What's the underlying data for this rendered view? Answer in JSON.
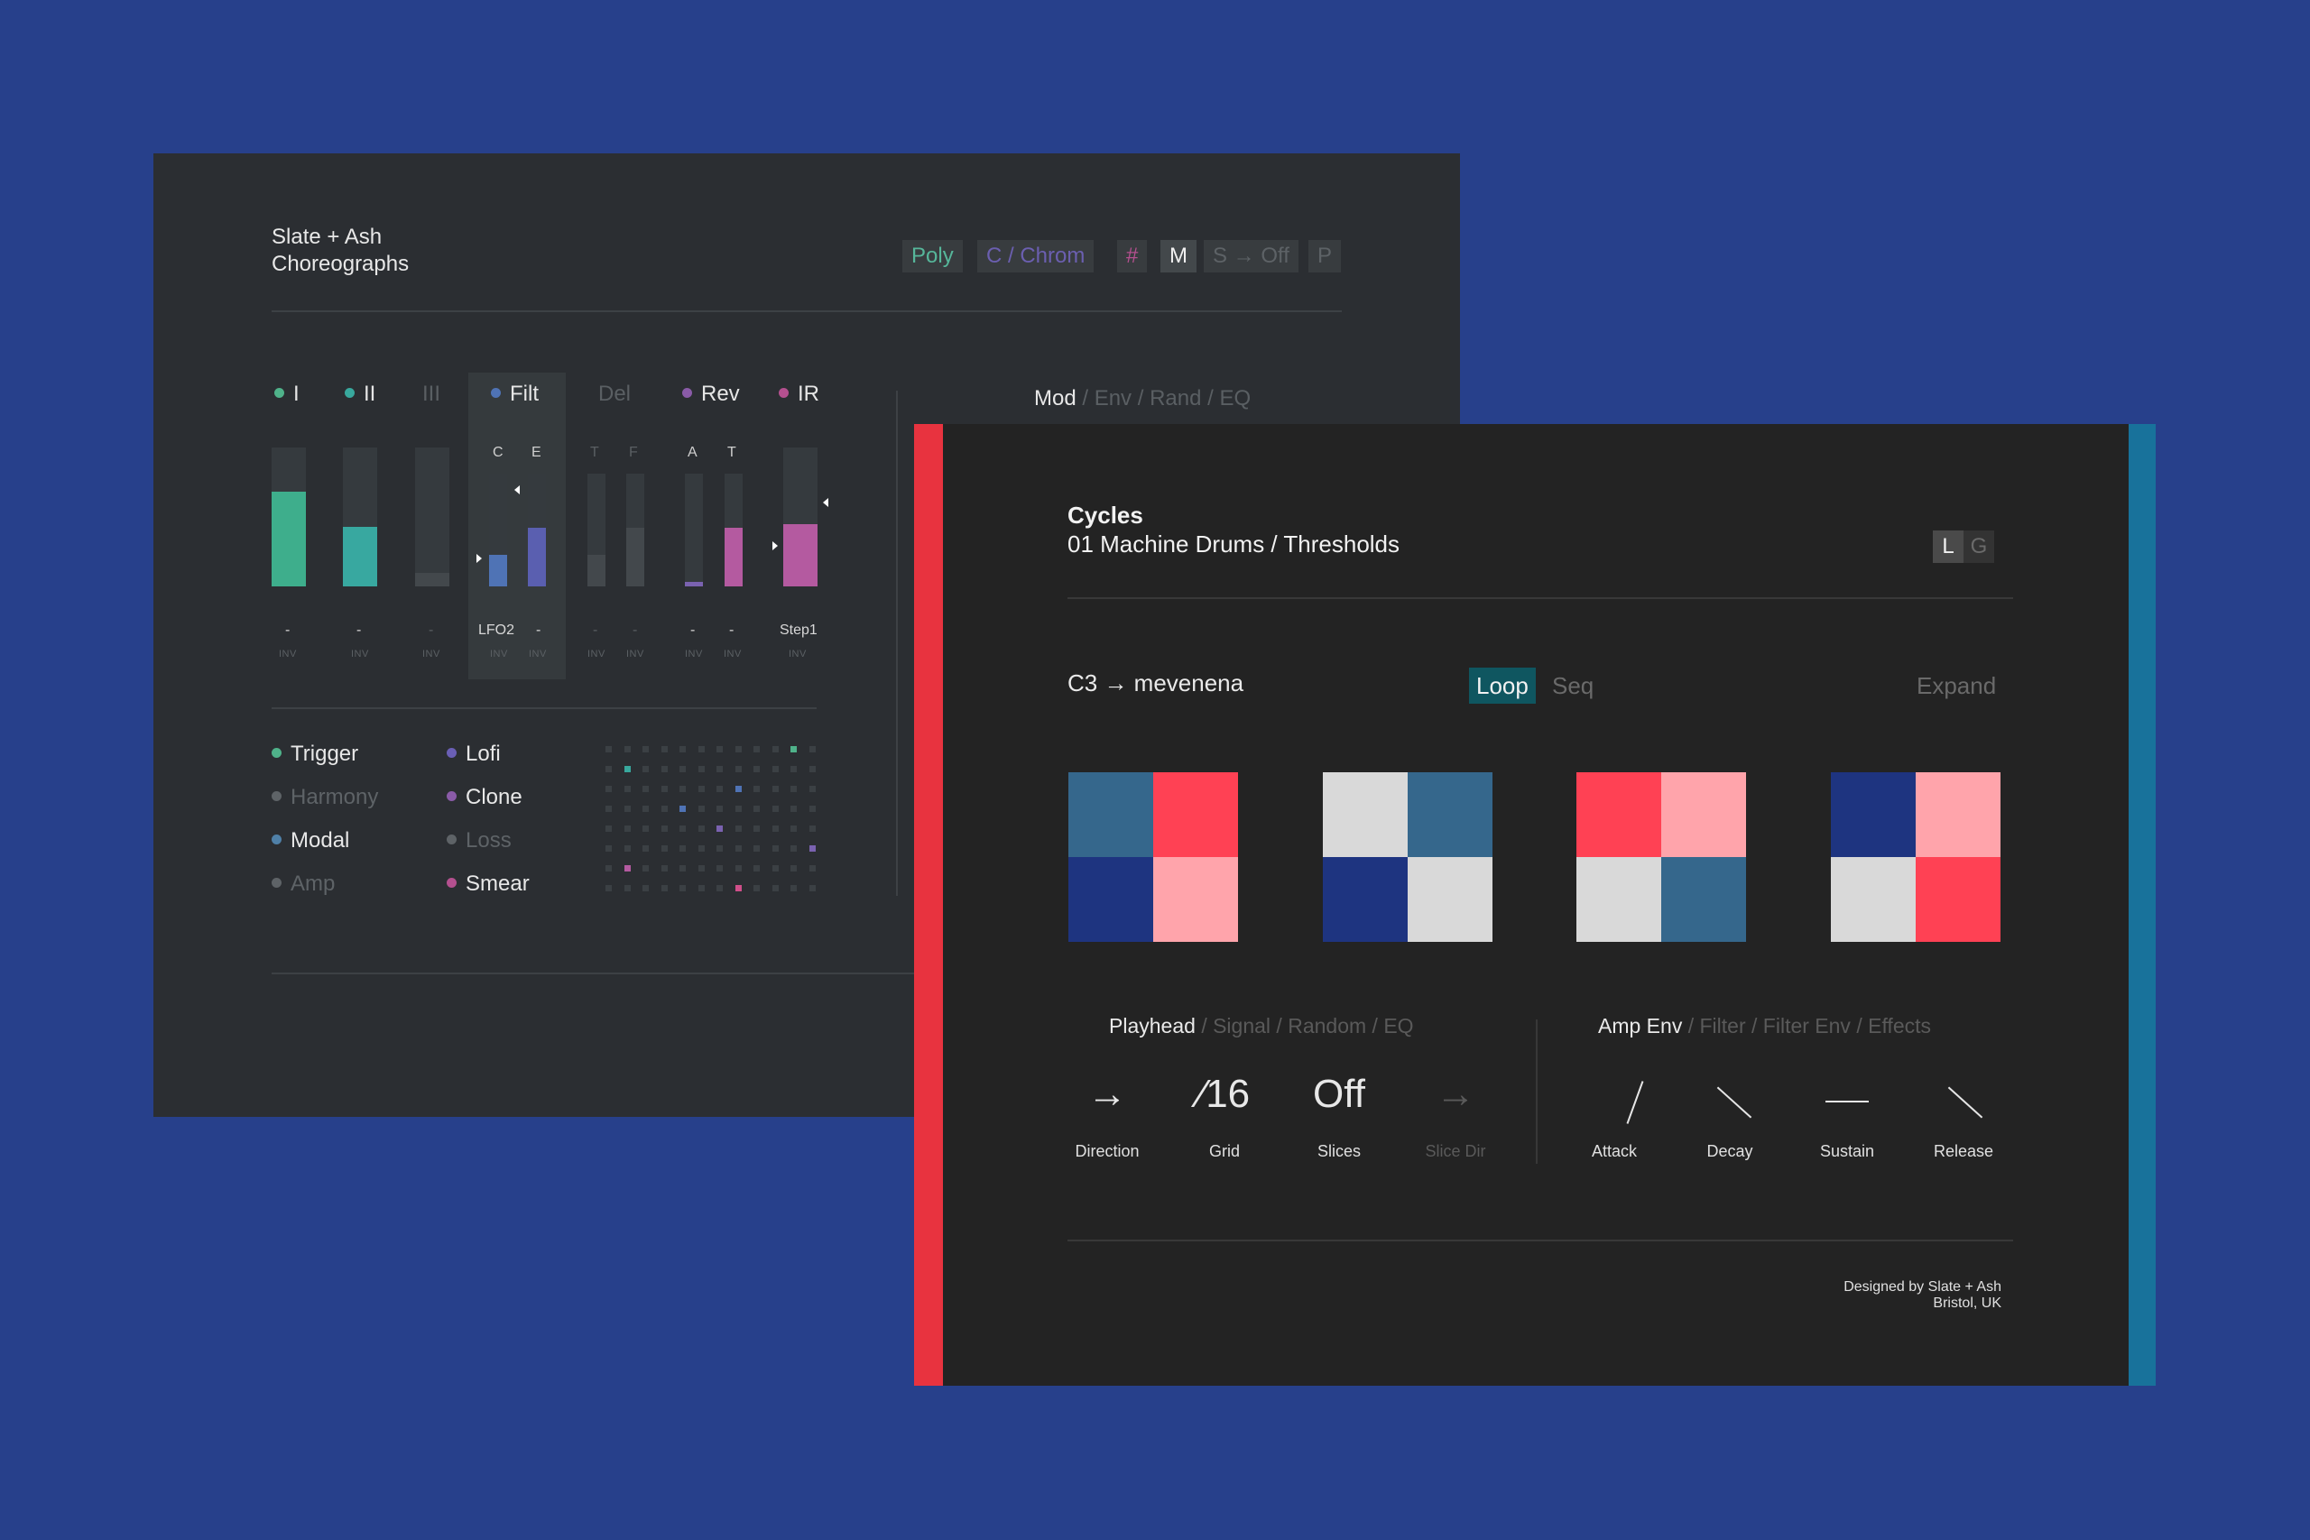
{
  "colors": {
    "background": "#27408b",
    "panel_a": "#2b2e32",
    "panel_b": "#232323",
    "teal": "#38a89d",
    "green": "#4fb28a",
    "blue": "#4f73b5",
    "purple": "#7a62b0",
    "magenta": "#b45aa0",
    "red": "#ff4154",
    "pink": "#ffa4ab",
    "navy": "#1e3480",
    "slate_blue": "#35678c",
    "light_gray": "#d9d9d9",
    "strip_red": "#e8333f",
    "strip_blue": "#18729b"
  },
  "panel_a": {
    "title_line1": "Slate + Ash",
    "title_line2": "Choreographs",
    "chips": [
      "Poly",
      "C / Chrom",
      "#",
      "M",
      "S → Off",
      "P"
    ],
    "mixer_columns": [
      {
        "label": "I",
        "level": 0.68
      },
      {
        "label": "II",
        "level": 0.43
      },
      {
        "label": "III",
        "level": 0.1
      },
      {
        "label": "Filt"
      },
      {
        "label": "Del"
      },
      {
        "label": "Rev"
      },
      {
        "label": "IR",
        "level": 0.45
      }
    ],
    "sub_labels": [
      "C",
      "E",
      "T",
      "F",
      "A",
      "T"
    ],
    "bottom_labels": [
      "-",
      "-",
      "-",
      "LFO2",
      "-",
      "-",
      "-",
      "-",
      "-",
      "Step1"
    ],
    "inv_label": "INV",
    "right_tabs": {
      "active": "Mod",
      "sep": "/",
      "others": [
        "Env",
        "Rand",
        "EQ"
      ]
    },
    "legend_left": [
      "Trigger",
      "Harmony",
      "Modal",
      "Amp"
    ],
    "legend_right": [
      "Lofi",
      "Clone",
      "Loss",
      "Smear"
    ]
  },
  "panel_b": {
    "title": "Cycles",
    "subtitle": "01 Machine Drums / Thresholds",
    "toggle": [
      "L",
      "G"
    ],
    "mapping": "C3 → mevenena",
    "mode_active": "Loop",
    "mode_other": "Seq",
    "expand": "Expand",
    "left_tabs": {
      "active": "Playhead",
      "others": [
        "Signal",
        "Random",
        "EQ"
      ]
    },
    "right_tabs": {
      "active": "Amp Env",
      "others": [
        "Filter",
        "Filter Env",
        "Effects"
      ]
    },
    "params_left": [
      {
        "glyph": "→",
        "label": "Direction"
      },
      {
        "glyph": "⁄16",
        "label": "Grid"
      },
      {
        "glyph": "Off",
        "label": "Slices"
      },
      {
        "glyph": "→",
        "label": "Slice Dir"
      }
    ],
    "params_right": [
      {
        "label": "Attack",
        "icon": "rise-line-icon"
      },
      {
        "label": "Decay",
        "icon": "fall-line-icon"
      },
      {
        "label": "Sustain",
        "icon": "flat-line-icon"
      },
      {
        "label": "Release",
        "icon": "fall-line-icon"
      }
    ],
    "credit_line1": "Designed by Slate + Ash",
    "credit_line2": "Bristol, UK"
  }
}
